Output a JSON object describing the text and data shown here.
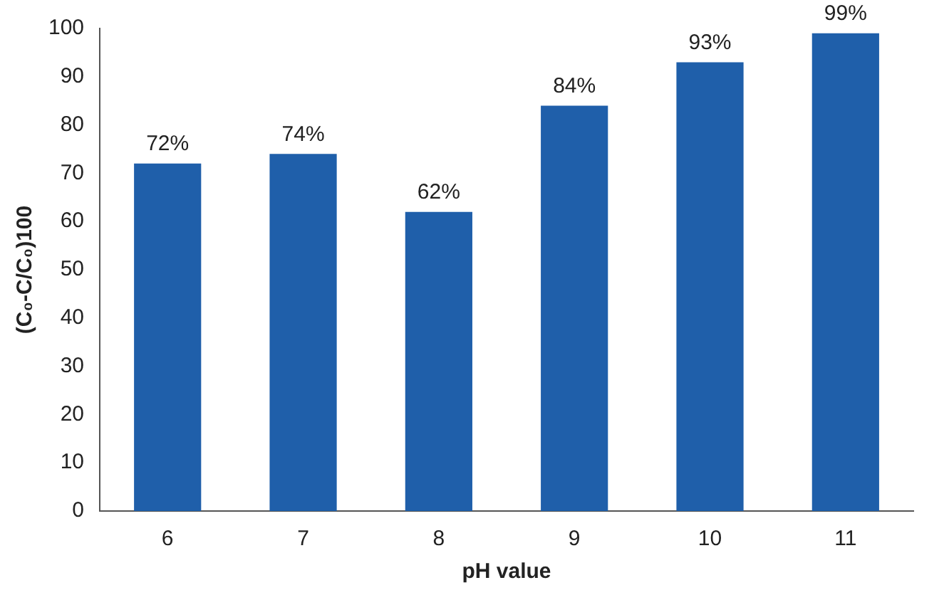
{
  "chart_data": {
    "type": "bar",
    "xlabel": "pH value",
    "ylabel": "(C₀-C/C₀)100",
    "categories": [
      "6",
      "7",
      "8",
      "9",
      "10",
      "11"
    ],
    "values": [
      72,
      74,
      62,
      84,
      93,
      99
    ],
    "value_labels": [
      "72%",
      "74%",
      "62%",
      "84%",
      "93%",
      "99%"
    ],
    "color": "#1f5faa",
    "ylim": [
      0,
      100
    ],
    "yticks": [
      0,
      10,
      20,
      30,
      40,
      50,
      60,
      70,
      80,
      90,
      100
    ],
    "grid": false,
    "legend": false
  }
}
